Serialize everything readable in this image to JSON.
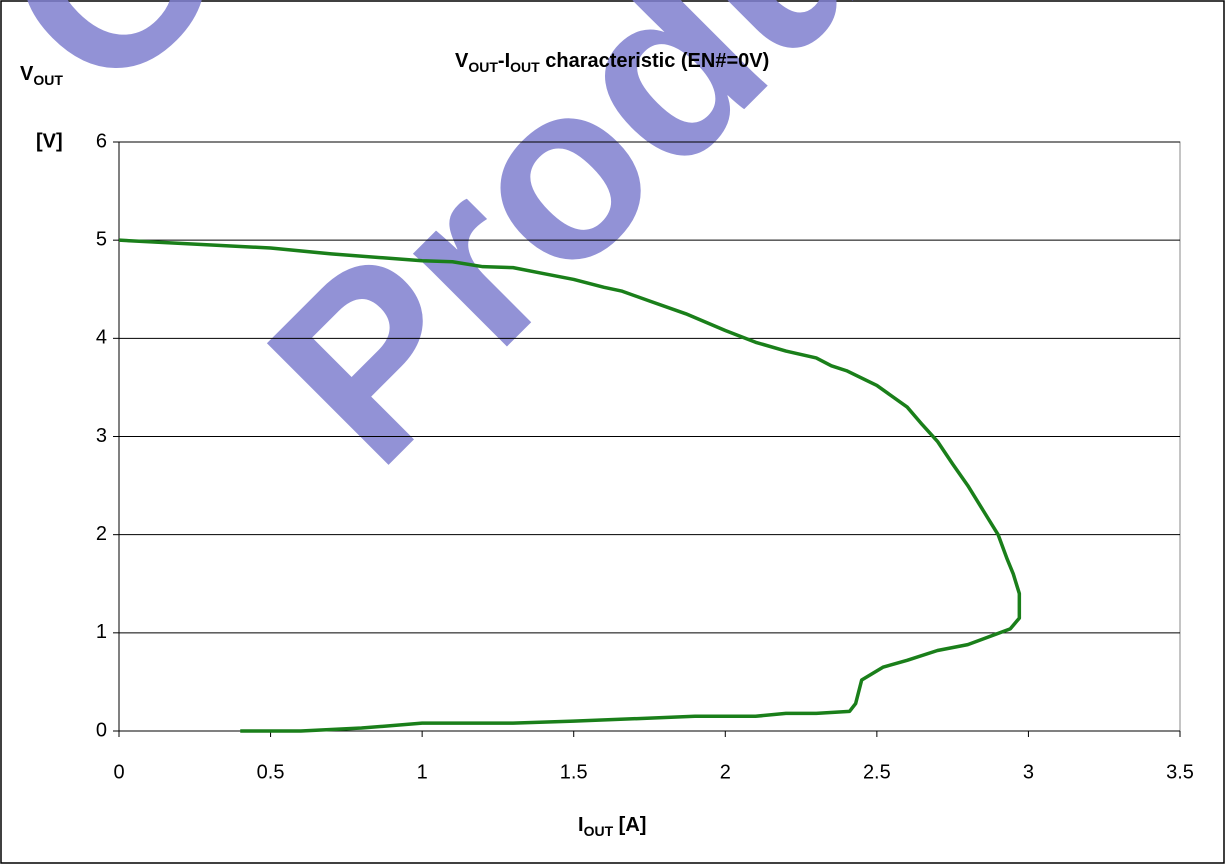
{
  "chart_data": {
    "type": "line",
    "title": [
      {
        "text": "V"
      },
      {
        "text": "OUT",
        "sub": true
      },
      {
        "text": "-I"
      },
      {
        "text": "OUT",
        "sub": true
      },
      {
        "text": " characteristic (EN#=0V)"
      }
    ],
    "y_label": [
      {
        "text": "V"
      },
      {
        "text": "OUT",
        "sub": true
      }
    ],
    "y_unit": "[V]",
    "x_label": [
      {
        "text": "I"
      },
      {
        "text": "OUT",
        "sub": true
      },
      {
        "text": " [A]"
      }
    ],
    "watermark": [
      "Obsolete",
      "Product"
    ],
    "xlim": [
      0,
      3.5
    ],
    "xticks": [
      0,
      0.5,
      1,
      1.5,
      2,
      2.5,
      3,
      3.5
    ],
    "ylim": [
      0,
      6
    ],
    "yticks": [
      0,
      1,
      2,
      3,
      4,
      5,
      6
    ],
    "grid": true,
    "series": [
      {
        "color": "#1a7f1a",
        "x": [
          0,
          0.5,
          0.7,
          1,
          1.1,
          1.2,
          1.3,
          1.4,
          1.5,
          1.6,
          1.66,
          1.75,
          1.87,
          2,
          2.1,
          2.2,
          2.3,
          2.35,
          2.4,
          2.5,
          2.6,
          2.65,
          2.7,
          2.75,
          2.8,
          2.85,
          2.9,
          2.93,
          2.95,
          2.97,
          2.97,
          2.94,
          2.8,
          2.7,
          2.6,
          2.52,
          2.45,
          2.43,
          2.41,
          2.3,
          2.2,
          2.1,
          1.9,
          1.5,
          1.3,
          1,
          0.8,
          0.6,
          0.4
        ],
        "values": [
          5,
          4.92,
          4.86,
          4.79,
          4.78,
          4.73,
          4.72,
          4.66,
          4.6,
          4.52,
          4.48,
          4.38,
          4.25,
          4.08,
          3.96,
          3.87,
          3.8,
          3.72,
          3.67,
          3.52,
          3.3,
          3.12,
          2.95,
          2.72,
          2.5,
          2.25,
          2,
          1.75,
          1.6,
          1.4,
          1.15,
          1.04,
          0.88,
          0.82,
          0.72,
          0.65,
          0.52,
          0.28,
          0.2,
          0.18,
          0.18,
          0.15,
          0.15,
          0.1,
          0.08,
          0.08,
          0.03,
          0,
          0
        ]
      }
    ]
  }
}
